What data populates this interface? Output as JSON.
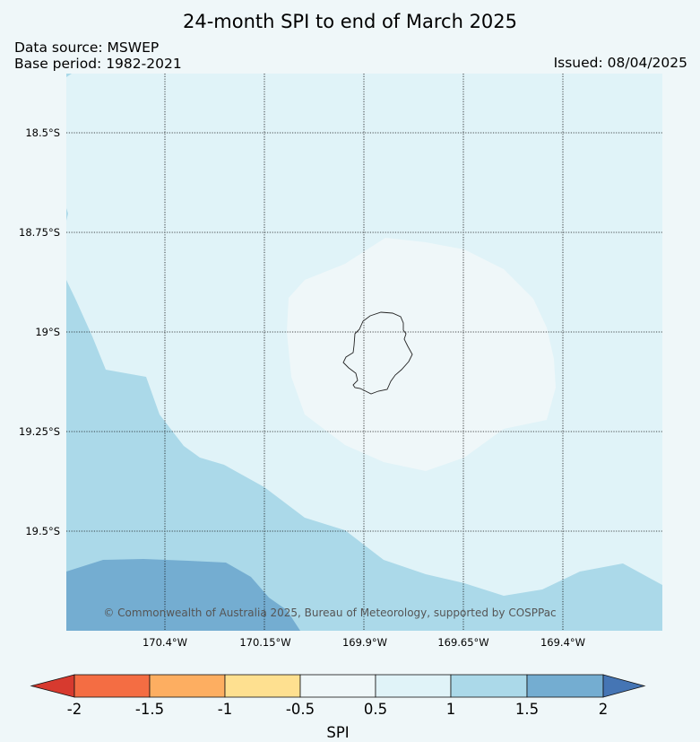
{
  "header": {
    "title": "24-month SPI to end of March 2025",
    "data_source": "Data source: MSWEP",
    "base_period": "Base period: 1982-2021",
    "issued": "Issued: 08/04/2025"
  },
  "map": {
    "lat_labels": [
      "18.5°S",
      "18.75°S",
      "19°S",
      "19.25°S",
      "19.5°S"
    ],
    "lon_labels": [
      "170.4°W",
      "170.15°W",
      "169.9°W",
      "169.65°W",
      "169.4°W"
    ],
    "copyright": "© Commonwealth of Australia 2025, Bureau of Meteorology, supported by COSPPac",
    "island_icon": "island-outline-icon"
  },
  "colorbar": {
    "title": "SPI",
    "ticks": [
      "-2",
      "-1.5",
      "-1",
      "-0.5",
      "0.5",
      "1",
      "1.5",
      "2"
    ],
    "colors": {
      "below_-2": "#d73a2f",
      "-2_to_-1.5": "#f46d43",
      "-1.5_to_-1": "#fdae61",
      "-1_to_-0.5": "#fee090",
      "-0.5_to_0.5": "#eff7f9",
      "0.5_to_1": "#e0f3f8",
      "1_to_1.5": "#abd9e9",
      "1.5_to_2": "#74add1",
      "above_2": "#4575b4"
    }
  }
}
